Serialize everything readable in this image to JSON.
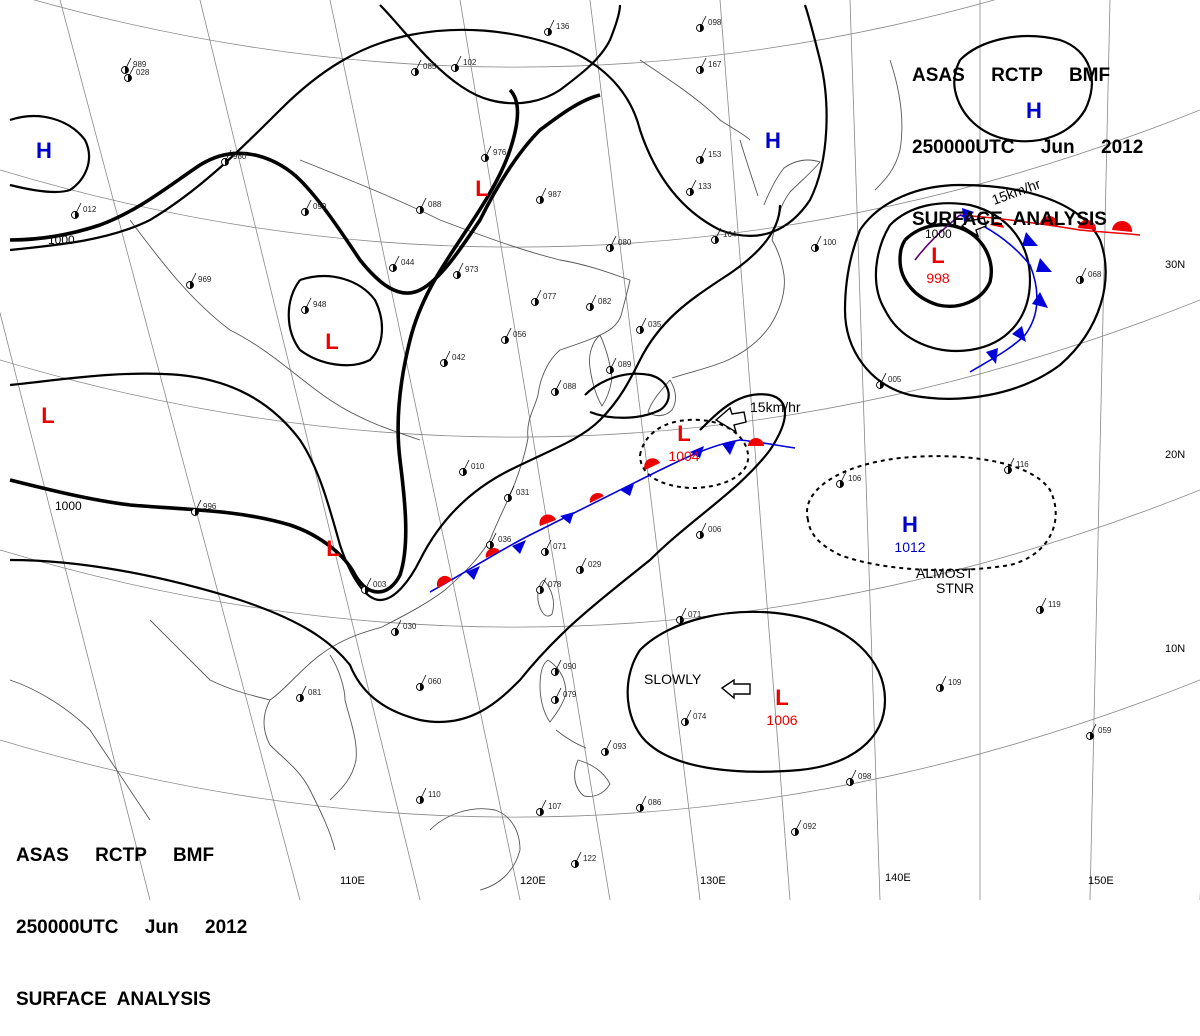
{
  "header": {
    "line1": "ASAS     RCTP     BMF",
    "line2": "250000UTC     Jun     2012",
    "line3": "SURFACE  ANALYSIS"
  },
  "colors": {
    "high": "#0000cc",
    "low": "#ee0000",
    "cold_front": "#0000dd",
    "warm_front": "#ee0000",
    "isobar": "#000000",
    "grid": "#888888",
    "coast": "#555555"
  },
  "longitude_labels": [
    "110E",
    "120E",
    "130E",
    "140E",
    "150E"
  ],
  "latitude_labels": [
    "30N",
    "20N",
    "10N"
  ],
  "isobar_labels": [
    "1000",
    "1000",
    "1000"
  ],
  "pressure_centers": [
    {
      "type": "H",
      "value": ""
    },
    {
      "type": "H",
      "value": ""
    },
    {
      "type": "H",
      "value": ""
    },
    {
      "type": "H",
      "value": "1012"
    },
    {
      "type": "L",
      "value": ""
    },
    {
      "type": "L",
      "value": ""
    },
    {
      "type": "L",
      "value": ""
    },
    {
      "type": "L",
      "value": ""
    },
    {
      "type": "L",
      "value": "1004"
    },
    {
      "type": "L",
      "value": "998"
    },
    {
      "type": "L",
      "value": "1006"
    }
  ],
  "annotations": {
    "motion_east_low": "15km/hr",
    "motion_front_low": "15km/hr",
    "slowly": "SLOWLY",
    "almost": "ALMOST",
    "stnr": "STNR"
  },
  "station_reports": [
    "980",
    "989",
    "028",
    "012",
    "976",
    "987",
    "085",
    "136",
    "102",
    "099",
    "088",
    "044",
    "973",
    "948",
    "969",
    "077",
    "056",
    "042",
    "080",
    "082",
    "035",
    "089",
    "088",
    "010",
    "098",
    "153",
    "133",
    "164",
    "167",
    "100",
    "068",
    "005",
    "081",
    "071",
    "078",
    "029",
    "006",
    "003",
    "030",
    "060",
    "090",
    "079",
    "093",
    "110",
    "107",
    "086",
    "122",
    "074",
    "071",
    "109",
    "119",
    "098",
    "092",
    "059",
    "996",
    "036",
    "106",
    "116",
    "031"
  ]
}
